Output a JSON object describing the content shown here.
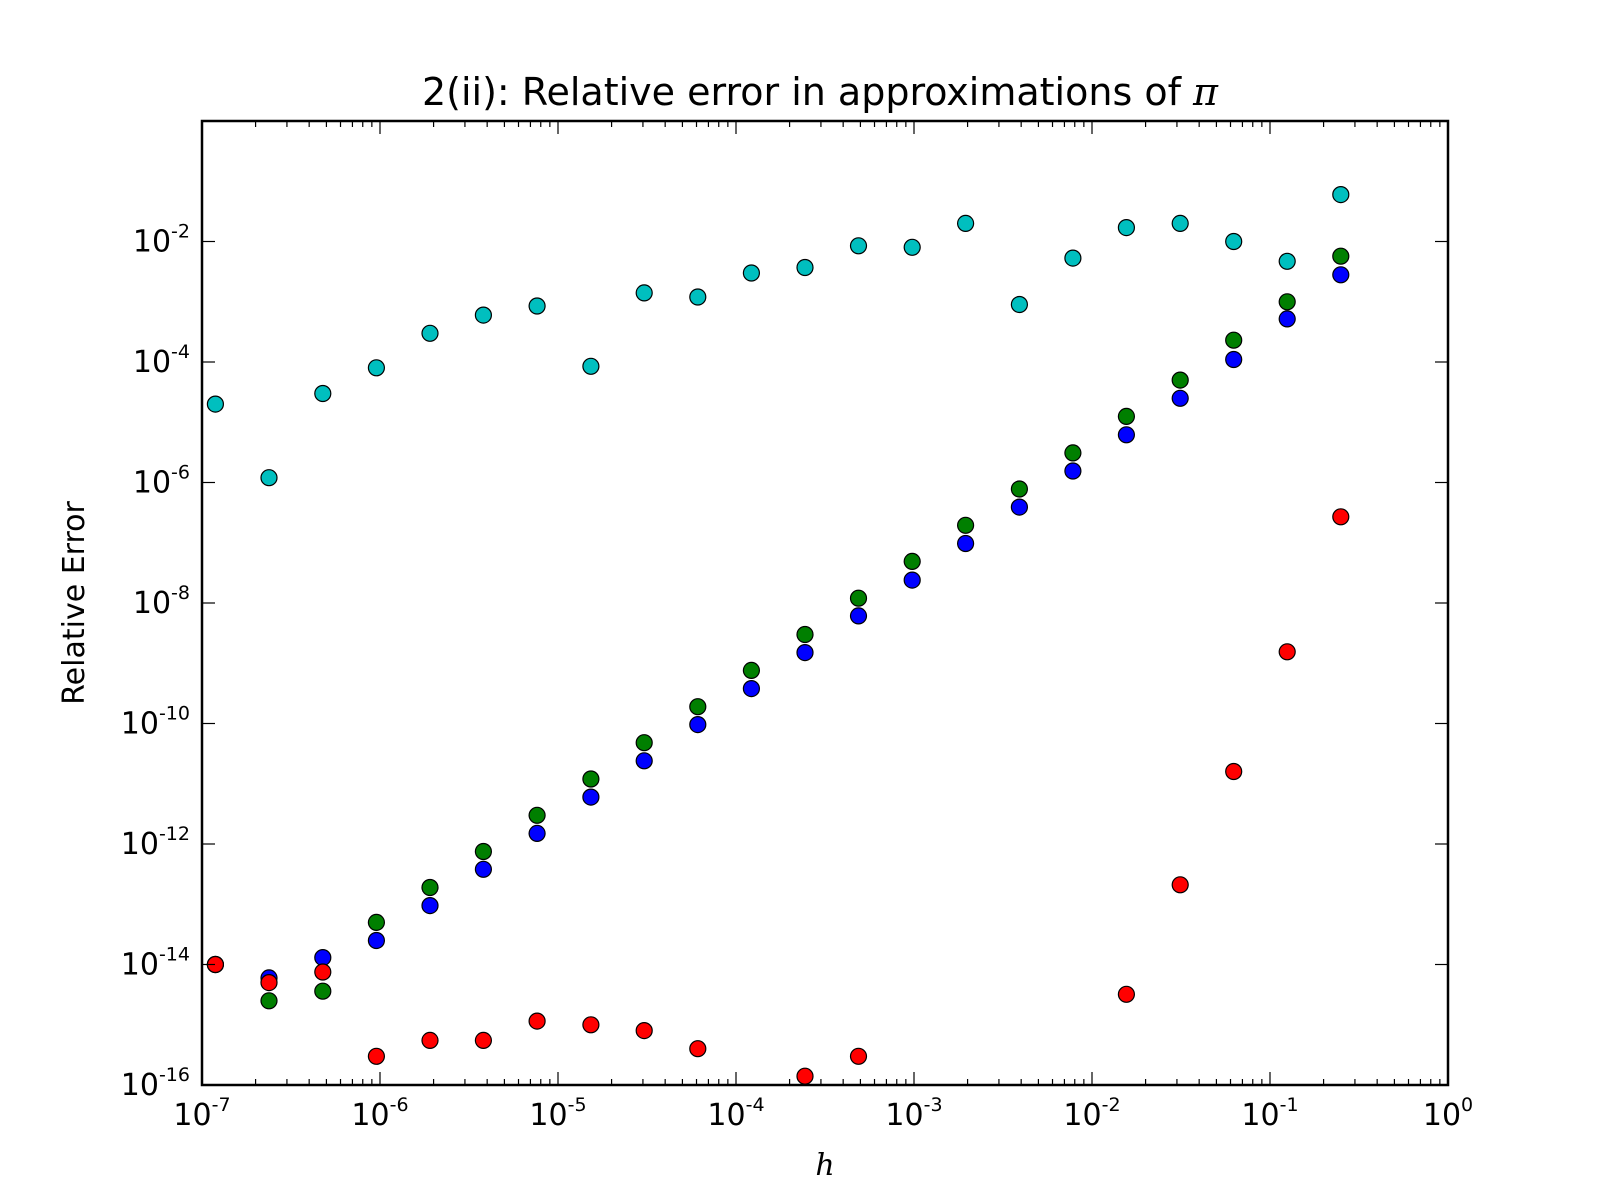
{
  "chart_data": {
    "type": "scatter",
    "title": "2(ii): Relative error in approximations of ",
    "title_symbol": "π",
    "xlabel": "h",
    "ylabel": "Relative Error",
    "xscale": "log",
    "yscale": "log",
    "xlim": [
      1e-07,
      1
    ],
    "ylim": [
      1e-16,
      1
    ],
    "grid": false,
    "legend": "none",
    "x_ticks": [
      {
        "base": "10",
        "exp": "-7",
        "value": 1e-07
      },
      {
        "base": "10",
        "exp": "-6",
        "value": 1e-06
      },
      {
        "base": "10",
        "exp": "-5",
        "value": 1e-05
      },
      {
        "base": "10",
        "exp": "-4",
        "value": 0.0001
      },
      {
        "base": "10",
        "exp": "-3",
        "value": 0.001
      },
      {
        "base": "10",
        "exp": "-2",
        "value": 0.01
      },
      {
        "base": "10",
        "exp": "-1",
        "value": 0.1
      },
      {
        "base": "10",
        "exp": "0",
        "value": 1
      }
    ],
    "y_ticks": [
      {
        "base": "10",
        "exp": "-16",
        "value": 1e-16
      },
      {
        "base": "10",
        "exp": "-14",
        "value": 1e-14
      },
      {
        "base": "10",
        "exp": "-12",
        "value": 1e-12
      },
      {
        "base": "10",
        "exp": "-10",
        "value": 1e-10
      },
      {
        "base": "10",
        "exp": "-8",
        "value": 1e-08
      },
      {
        "base": "10",
        "exp": "-6",
        "value": 1e-06
      },
      {
        "base": "10",
        "exp": "-4",
        "value": 0.0001
      },
      {
        "base": "10",
        "exp": "-2",
        "value": 0.01
      }
    ],
    "series": [
      {
        "color": "#00bfbf",
        "points": [
          [
            1.19e-07,
            2e-05
          ],
          [
            2.38e-07,
            1.2e-06
          ],
          [
            4.77e-07,
            3e-05
          ],
          [
            9.54e-07,
            8e-05
          ],
          [
            1.91e-06,
            0.0003
          ],
          [
            3.81e-06,
            0.0006
          ],
          [
            7.63e-06,
            0.00085
          ],
          [
            1.53e-05,
            8.5e-05
          ],
          [
            3.05e-05,
            0.0014
          ],
          [
            6.1e-05,
            0.0012
          ],
          [
            0.000122,
            0.003
          ],
          [
            0.000244,
            0.0037
          ],
          [
            0.000488,
            0.0085
          ],
          [
            0.000977,
            0.008
          ],
          [
            0.00195,
            0.02
          ],
          [
            0.00391,
            0.0009
          ],
          [
            0.00781,
            0.0053
          ],
          [
            0.0156,
            0.017
          ],
          [
            0.0313,
            0.02
          ],
          [
            0.0625,
            0.01
          ],
          [
            0.125,
            0.0047
          ],
          [
            0.25,
            0.06
          ]
        ]
      },
      {
        "color": "#007f00",
        "points": [
          [
            1.19e-07,
            1e-14
          ],
          [
            2.38e-07,
            2.5e-15
          ],
          [
            4.77e-07,
            3.6e-15
          ],
          [
            9.54e-07,
            5e-14
          ],
          [
            1.91e-06,
            1.9e-13
          ],
          [
            3.81e-06,
            7.5e-13
          ],
          [
            7.63e-06,
            3e-12
          ],
          [
            1.53e-05,
            1.2e-11
          ],
          [
            3.05e-05,
            4.8e-11
          ],
          [
            6.1e-05,
            1.9e-10
          ],
          [
            0.000122,
            7.6e-10
          ],
          [
            0.000244,
            3e-09
          ],
          [
            0.000488,
            1.2e-08
          ],
          [
            0.000977,
            4.9e-08
          ],
          [
            0.00195,
            1.95e-07
          ],
          [
            0.00391,
            7.8e-07
          ],
          [
            0.00781,
            3.1e-06
          ],
          [
            0.0156,
            1.25e-05
          ],
          [
            0.0313,
            5e-05
          ],
          [
            0.0625,
            0.00023
          ],
          [
            0.125,
            0.001
          ],
          [
            0.25,
            0.0057
          ]
        ]
      },
      {
        "color": "#0000ff",
        "points": [
          [
            1.19e-07,
            1e-14
          ],
          [
            2.38e-07,
            6e-15
          ],
          [
            4.77e-07,
            1.3e-14
          ],
          [
            9.54e-07,
            2.5e-14
          ],
          [
            1.91e-06,
            9.5e-14
          ],
          [
            3.81e-06,
            3.8e-13
          ],
          [
            7.63e-06,
            1.5e-12
          ],
          [
            1.53e-05,
            6e-12
          ],
          [
            3.05e-05,
            2.4e-11
          ],
          [
            6.1e-05,
            9.6e-11
          ],
          [
            0.000122,
            3.8e-10
          ],
          [
            0.000244,
            1.5e-09
          ],
          [
            0.000488,
            6.1e-09
          ],
          [
            0.000977,
            2.4e-08
          ],
          [
            0.00195,
            9.7e-08
          ],
          [
            0.00391,
            3.9e-07
          ],
          [
            0.00781,
            1.55e-06
          ],
          [
            0.0156,
            6.2e-06
          ],
          [
            0.0313,
            2.5e-05
          ],
          [
            0.0625,
            0.00011
          ],
          [
            0.125,
            0.00052
          ],
          [
            0.25,
            0.0028
          ]
        ]
      },
      {
        "color": "#ff0000",
        "points": [
          [
            1.19e-07,
            1e-14
          ],
          [
            2.38e-07,
            5e-15
          ],
          [
            4.77e-07,
            7.5e-15
          ],
          [
            9.54e-07,
            3e-16
          ],
          [
            1.91e-06,
            5.5e-16
          ],
          [
            3.81e-06,
            5.5e-16
          ],
          [
            7.63e-06,
            1.15e-15
          ],
          [
            1.53e-05,
            1e-15
          ],
          [
            3.05e-05,
            8e-16
          ],
          [
            6.1e-05,
            4e-16
          ],
          [
            0.000244,
            1.4e-16
          ],
          [
            0.000488,
            3e-16
          ],
          [
            0.0156,
            3.2e-15
          ],
          [
            0.0313,
            2.1e-13
          ],
          [
            0.0625,
            1.6e-11
          ],
          [
            0.125,
            1.55e-09
          ],
          [
            0.25,
            2.7e-07
          ]
        ]
      }
    ]
  }
}
